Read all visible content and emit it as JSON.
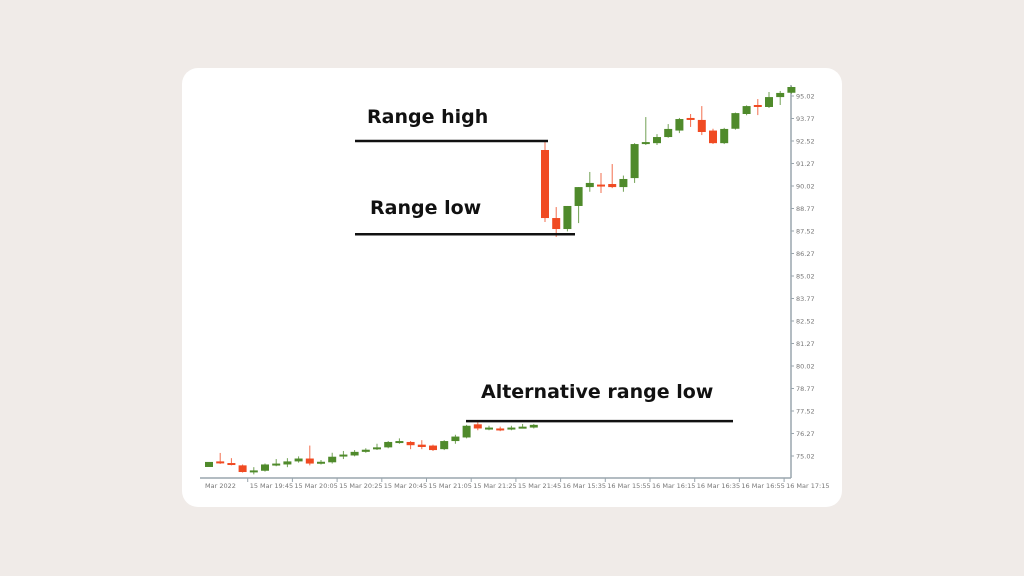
{
  "chart_data": {
    "type": "candlestick",
    "colors": {
      "up": "#4f8a2b",
      "down": "#f04a22",
      "axis": "#9aa5ad",
      "annotation": "#111111"
    },
    "ylim": [
      74.0,
      95.6
    ],
    "y_ticks": [
      "95.02",
      "93.77",
      "92.52",
      "91.27",
      "90.02",
      "88.77",
      "87.52",
      "86.27",
      "85.02",
      "83.77",
      "82.52",
      "81.27",
      "80.02",
      "78.77",
      "77.52",
      "76.27",
      "75.02"
    ],
    "x_ticks": [
      "Mar 2022",
      "15 Mar 19:45",
      "15 Mar 20:05",
      "15 Mar 20:25",
      "15 Mar 20:45",
      "15 Mar 21:05",
      "15 Mar 21:25",
      "15 Mar 21:45",
      "16 Mar 15:35",
      "16 Mar 15:55",
      "16 Mar 16:15",
      "16 Mar 16:35",
      "16 Mar 16:55",
      "16 Mar 17:15"
    ],
    "candles": [
      {
        "o": 74.41,
        "h": 74.69,
        "l": 74.41,
        "c": 74.69
      },
      {
        "o": 74.72,
        "h": 75.19,
        "l": 74.58,
        "c": 74.63
      },
      {
        "o": 74.63,
        "h": 74.9,
        "l": 74.5,
        "c": 74.55
      },
      {
        "o": 74.5,
        "h": 74.55,
        "l": 74.1,
        "c": 74.13
      },
      {
        "o": 74.15,
        "h": 74.4,
        "l": 74.0,
        "c": 74.22
      },
      {
        "o": 74.2,
        "h": 74.6,
        "l": 74.15,
        "c": 74.55
      },
      {
        "o": 74.55,
        "h": 74.85,
        "l": 74.45,
        "c": 74.6
      },
      {
        "o": 74.55,
        "h": 74.9,
        "l": 74.4,
        "c": 74.72
      },
      {
        "o": 74.72,
        "h": 75.0,
        "l": 74.65,
        "c": 74.88
      },
      {
        "o": 74.88,
        "h": 75.6,
        "l": 74.5,
        "c": 74.6
      },
      {
        "o": 74.62,
        "h": 74.8,
        "l": 74.55,
        "c": 74.7
      },
      {
        "o": 74.67,
        "h": 75.2,
        "l": 74.6,
        "c": 74.98
      },
      {
        "o": 75.0,
        "h": 75.3,
        "l": 74.85,
        "c": 75.1
      },
      {
        "o": 75.05,
        "h": 75.35,
        "l": 75.0,
        "c": 75.25
      },
      {
        "o": 75.25,
        "h": 75.45,
        "l": 75.2,
        "c": 75.37
      },
      {
        "o": 75.4,
        "h": 75.7,
        "l": 75.35,
        "c": 75.5
      },
      {
        "o": 75.5,
        "h": 75.85,
        "l": 75.45,
        "c": 75.8
      },
      {
        "o": 75.75,
        "h": 76.0,
        "l": 75.7,
        "c": 75.85
      },
      {
        "o": 75.8,
        "h": 75.85,
        "l": 75.4,
        "c": 75.62
      },
      {
        "o": 75.65,
        "h": 75.9,
        "l": 75.4,
        "c": 75.52
      },
      {
        "o": 75.6,
        "h": 75.65,
        "l": 75.3,
        "c": 75.35
      },
      {
        "o": 75.4,
        "h": 75.9,
        "l": 75.35,
        "c": 75.85
      },
      {
        "o": 75.85,
        "h": 76.2,
        "l": 75.7,
        "c": 76.1
      },
      {
        "o": 76.05,
        "h": 76.75,
        "l": 76.0,
        "c": 76.7
      },
      {
        "o": 76.78,
        "h": 76.9,
        "l": 76.45,
        "c": 76.55
      },
      {
        "o": 76.55,
        "h": 76.7,
        "l": 76.45,
        "c": 76.6
      },
      {
        "o": 76.55,
        "h": 76.65,
        "l": 76.4,
        "c": 76.5
      },
      {
        "o": 76.55,
        "h": 76.7,
        "l": 76.45,
        "c": 76.6
      },
      {
        "o": 76.6,
        "h": 76.8,
        "l": 76.55,
        "c": 76.65
      },
      {
        "o": 76.6,
        "h": 76.8,
        "l": 76.55,
        "c": 76.75
      },
      {
        "o": 92.02,
        "h": 92.52,
        "l": 88.02,
        "c": 88.24
      },
      {
        "o": 88.24,
        "h": 88.85,
        "l": 87.19,
        "c": 87.63
      },
      {
        "o": 87.63,
        "h": 88.91,
        "l": 87.5,
        "c": 88.91
      },
      {
        "o": 88.91,
        "h": 89.96,
        "l": 87.96,
        "c": 89.96
      },
      {
        "o": 89.96,
        "h": 90.8,
        "l": 89.7,
        "c": 90.19
      },
      {
        "o": 90.1,
        "h": 90.74,
        "l": 89.63,
        "c": 90.05
      },
      {
        "o": 90.13,
        "h": 91.24,
        "l": 89.9,
        "c": 89.96
      },
      {
        "o": 89.96,
        "h": 90.6,
        "l": 89.7,
        "c": 90.41
      },
      {
        "o": 90.46,
        "h": 92.4,
        "l": 90.19,
        "c": 92.35
      },
      {
        "o": 92.35,
        "h": 93.85,
        "l": 92.3,
        "c": 92.46
      },
      {
        "o": 92.4,
        "h": 92.9,
        "l": 92.3,
        "c": 92.74
      },
      {
        "o": 92.74,
        "h": 93.46,
        "l": 92.7,
        "c": 93.19
      },
      {
        "o": 93.1,
        "h": 93.8,
        "l": 92.96,
        "c": 93.74
      },
      {
        "o": 93.8,
        "h": 94.02,
        "l": 93.3,
        "c": 93.69
      },
      {
        "o": 93.69,
        "h": 94.46,
        "l": 92.85,
        "c": 93.02
      },
      {
        "o": 93.1,
        "h": 93.2,
        "l": 92.35,
        "c": 92.4
      },
      {
        "o": 92.4,
        "h": 93.25,
        "l": 92.35,
        "c": 93.19
      },
      {
        "o": 93.2,
        "h": 94.1,
        "l": 93.15,
        "c": 94.07
      },
      {
        "o": 94.02,
        "h": 94.5,
        "l": 93.95,
        "c": 94.46
      },
      {
        "o": 94.52,
        "h": 94.85,
        "l": 93.96,
        "c": 94.41
      },
      {
        "o": 94.41,
        "h": 95.24,
        "l": 94.35,
        "c": 94.96
      },
      {
        "o": 94.96,
        "h": 95.3,
        "l": 94.52,
        "c": 95.19
      },
      {
        "o": 95.2,
        "h": 95.55,
        "l": 95.15,
        "c": 95.52
      }
    ],
    "annotations": [
      {
        "label": "Range high",
        "price": 92.52
      },
      {
        "label": "Range low",
        "price": 87.34
      },
      {
        "label": "Alternative range low",
        "price": 76.96
      }
    ]
  }
}
